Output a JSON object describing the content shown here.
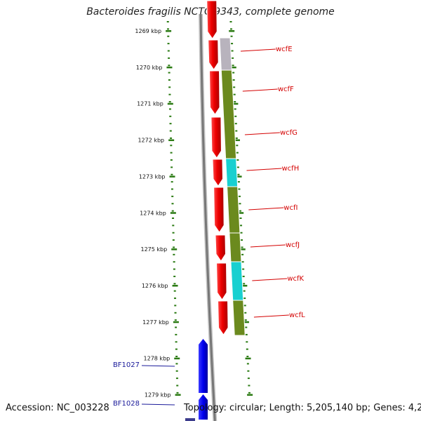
{
  "title": "Bacteroides fragilis NCTC 9343, complete genome",
  "footer": {
    "accession": "Accession: NC_003228",
    "topology": "Topology: circular; Length: 5,205,140 bp; Genes: 4,276"
  },
  "scale_labels": [
    "1269 kbp",
    "1270 kbp",
    "1271 kbp",
    "1272 kbp",
    "1273 kbp",
    "1274 kbp",
    "1275 kbp",
    "1276 kbp",
    "1277 kbp",
    "1278 kbp",
    "1279 kbp"
  ],
  "red_genes": [
    "wcfE",
    "wcfF",
    "wcfG",
    "wcfH",
    "wcfI",
    "wcfJ",
    "wcfK",
    "wcfL"
  ],
  "blue_genes": [
    "BF1027",
    "BF1028"
  ],
  "colors": {
    "forward": "#ee0000",
    "reverse": "#0000ee",
    "backbone": "#8a8a8a",
    "tick": "#2a7a12",
    "category_olive": "#6b8a1e",
    "category_cyan": "#18d0d0",
    "category_gray": "#b8b3bd",
    "red_label": "#d40000",
    "blue_label": "#1a1a9a"
  },
  "category_track": [
    "gray",
    "olive",
    "olive",
    "cyan",
    "olive",
    "olive",
    "cyan",
    "olive"
  ]
}
